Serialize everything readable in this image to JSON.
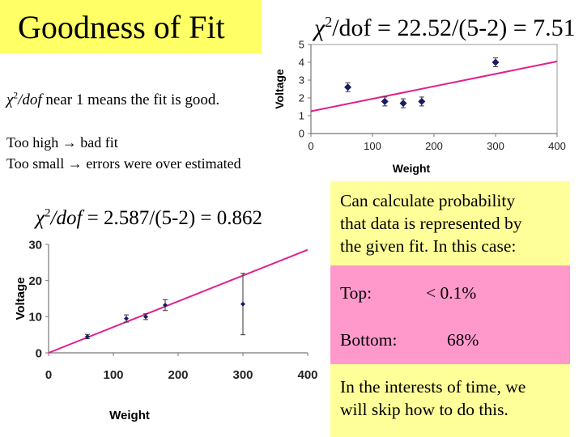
{
  "slide": {
    "title": "Goodness of Fit",
    "chi_top": {
      "prefix": "χ",
      "sup": "2",
      "dof": "/dof",
      "rest": " = 22.52/(5-2) = 7.51"
    },
    "chi_near": {
      "prefix": "χ",
      "sup": "2",
      "dof": "/dof",
      "rest": " near 1 means the fit is good."
    },
    "too_high": {
      "label": "Too high ",
      "arrow": "→",
      "rest": " bad fit"
    },
    "too_small": {
      "label": "Too small ",
      "arrow": "→",
      "rest": " errors were over estimated"
    },
    "chi_mid": {
      "prefix": "χ",
      "sup": "2",
      "dof": "/dof",
      "rest": " = 2.587/(5-2) = 0.862"
    },
    "prob_box": [
      "Can calculate probability",
      "that data is represented by",
      "the given fit.  In this case:"
    ],
    "top_label": "Top:",
    "top_value": "< 0.1%",
    "bottom_label": "Bottom:",
    "bottom_value": "68%",
    "skip_box": [
      "In the interests of time, we",
      "will skip how to do this."
    ],
    "colors": {
      "title_bg": "#ffff66",
      "box_yellow": "#ffff99",
      "box_pink": "#ff99cc",
      "fit_line": "#e0208c",
      "points": "#1a1a66"
    }
  },
  "chart_data": [
    {
      "type": "scatter",
      "title": "",
      "xlabel": "Weight",
      "ylabel": "Voltage",
      "xlim": [
        0,
        400
      ],
      "ylim": [
        0,
        5
      ],
      "xticks": [
        "0",
        "100",
        "200",
        "300",
        "400"
      ],
      "yticks": [
        "0",
        "1",
        "2",
        "3",
        "4",
        "5"
      ],
      "points": [
        {
          "x": 60,
          "y": 2.6,
          "err": 0.25
        },
        {
          "x": 120,
          "y": 1.8,
          "err": 0.25
        },
        {
          "x": 150,
          "y": 1.7,
          "err": 0.25
        },
        {
          "x": 180,
          "y": 1.8,
          "err": 0.25
        },
        {
          "x": 300,
          "y": 4.0,
          "err": 0.25
        }
      ],
      "fit_line": {
        "x": [
          0,
          400
        ],
        "y": [
          1.25,
          4.05
        ]
      }
    },
    {
      "type": "scatter",
      "title": "",
      "xlabel": "Weight",
      "ylabel": "Voltage",
      "xlim": [
        0,
        400
      ],
      "ylim": [
        0,
        30
      ],
      "xticks": [
        "0",
        "100",
        "200",
        "300",
        "400"
      ],
      "yticks": [
        "0",
        "10",
        "20",
        "30"
      ],
      "points": [
        {
          "x": 60,
          "y": 4.5,
          "err": 0.6
        },
        {
          "x": 120,
          "y": 9.5,
          "err": 1.0
        },
        {
          "x": 150,
          "y": 10.0,
          "err": 0.8
        },
        {
          "x": 180,
          "y": 13.2,
          "err": 1.5
        },
        {
          "x": 300,
          "y": 13.5,
          "err": 8.5
        }
      ],
      "fit_line": {
        "x": [
          0,
          400
        ],
        "y": [
          0,
          28.5
        ]
      }
    }
  ]
}
